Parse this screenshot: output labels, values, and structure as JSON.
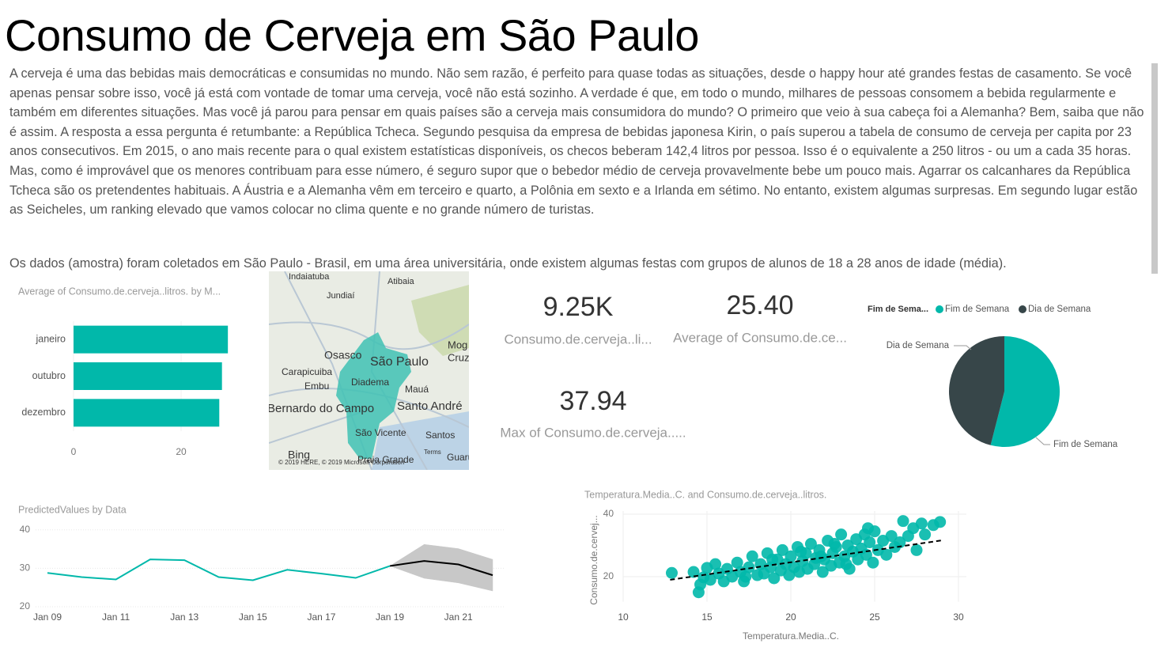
{
  "title": "Consumo de Cerveja em São Paulo",
  "paragraphs": [
    "A cerveja é uma das bebidas mais democráticas e consumidas no mundo. Não sem razão, é perfeito para quase todas as situações, desde o happy hour até grandes festas de casamento. Se você apenas pensar sobre isso, você já está com vontade de tomar uma cerveja, você não está sozinho. A verdade é que, em todo o mundo, milhares de pessoas consomem a bebida regularmente e também em diferentes situações. Mas você já parou para pensar em quais países são a cerveja mais consumidora do mundo? O primeiro que veio à sua cabeça foi a Alemanha? Bem, saiba que não é assim. A resposta a essa pergunta é retumbante: a República Tcheca. Segundo pesquisa da empresa de bebidas japonesa Kirin, o país superou a tabela de consumo de cerveja per capita por 23 anos consecutivos. Em 2015, o ano mais recente para o qual existem estatísticas disponíveis, os checos beberam 142,4 litros por pessoa. Isso é o equivalente a 250 litros - ou um a cada 35 horas. Mas, como é improvável que os menores contribuam para esse número, é seguro supor que o bebedor médio de cerveja provavelmente bebe um pouco mais. Agarrar os calcanhares da República Tcheca são os pretendentes habituais. A Áustria e a Alemanha vêm em terceiro e quarto, a Polônia em sexto e a Irlanda em sétimo. No entanto, existem algumas surpresas. Em segundo lugar estão as Seicheles, um ranking elevado que vamos colocar no clima quente e no grande número de turistas.",
    "Os dados (amostra) foram coletados em São Paulo - Brasil, em uma área universitária, onde existem algumas festas com grupos de alunos de 18 a 28 anos de idade (média)."
  ],
  "map": {
    "labels": [
      "Indaiatuba",
      "Atibaia",
      "Jundiaí",
      "Osasco",
      "São Paulo",
      "Mog",
      "Cruz",
      "Carapicuiba",
      "Embu",
      "Diadema",
      "Mauá",
      "Bernardo do Campo",
      "Santo André",
      "São Vicente",
      "Santos",
      "Praia Grande",
      "Guaru",
      "Bing",
      "© 2019 HERE, © 2019 Microsoft Corporation",
      "Terms"
    ]
  },
  "cards": [
    {
      "value": "9.25K",
      "label": "Consumo.de.cerveja..li..."
    },
    {
      "value": "25.40",
      "label": "Average of Consumo.de.ce..."
    },
    {
      "value": "37.94",
      "label": "Max of Consumo.de.cerveja....."
    }
  ],
  "chart_data": [
    {
      "type": "bar",
      "title": "Average of Consumo.de.cerveja..litros. by M...",
      "categories": [
        "janeiro",
        "outubro",
        "dezembro"
      ],
      "values": [
        28.7,
        27.6,
        27.1
      ],
      "color": "#01b8aa",
      "xlim": [
        0,
        30
      ],
      "xticks": [
        0,
        20
      ]
    },
    {
      "type": "pie",
      "legend_title": "Fim de Sema...",
      "categories": [
        "Fim de Semana",
        "Dia de Semana"
      ],
      "values": [
        54,
        46
      ],
      "colors": [
        "#01b8aa",
        "#374649"
      ]
    },
    {
      "type": "line",
      "title": "PredictedValues by Data",
      "categories": [
        "Jan 09",
        null,
        "Jan 11",
        null,
        "Jan 13",
        null,
        "Jan 15",
        null,
        "Jan 17",
        null,
        "Jan 19",
        null,
        "Jan 21",
        null
      ],
      "series": [
        {
          "color": "#01b8aa",
          "values": [
            28.8,
            27.7,
            27.1,
            32.3,
            32.1,
            27.7,
            26.9,
            29.6,
            28.6,
            27.5,
            30.6,
            null,
            null,
            null
          ]
        },
        {
          "color": "#000000",
          "values": [
            null,
            null,
            null,
            null,
            null,
            null,
            null,
            null,
            null,
            null,
            30.6,
            31.9,
            31.0,
            28.2
          ]
        }
      ],
      "band": {
        "color": "#c8c8c8",
        "upper": [
          null,
          null,
          null,
          null,
          null,
          null,
          null,
          null,
          null,
          null,
          30.6,
          36.2,
          35.1,
          32.3
        ],
        "lower": [
          null,
          null,
          null,
          null,
          null,
          null,
          null,
          null,
          null,
          null,
          30.6,
          27.4,
          26.2,
          24.1
        ]
      },
      "ylim": [
        20,
        42
      ],
      "yticks": [
        20,
        30,
        40
      ],
      "grid": true
    },
    {
      "type": "scatter",
      "title": "Temperatura.Media..C. and Consumo.de.cerveja..litros.",
      "x_label": "Temperatura.Media..C.",
      "y_label": "Consumo.de.cervej...",
      "color": "#01b8aa",
      "x": [
        12.9,
        14.2,
        14.5,
        14.6,
        14.8,
        15.0,
        15.2,
        15.5,
        15.7,
        16.0,
        16.2,
        16.5,
        16.8,
        17.0,
        17.2,
        17.5,
        17.7,
        18.0,
        18.2,
        18.4,
        18.6,
        18.8,
        19.0,
        19.2,
        19.4,
        19.5,
        19.7,
        19.9,
        20.0,
        20.2,
        20.4,
        20.5,
        20.7,
        20.9,
        21.0,
        21.2,
        21.4,
        21.5,
        21.7,
        21.9,
        22.0,
        22.2,
        22.4,
        22.5,
        22.7,
        22.9,
        23.0,
        23.2,
        23.4,
        23.5,
        23.7,
        23.9,
        24.0,
        24.2,
        24.4,
        24.5,
        24.7,
        24.9,
        25.0,
        25.2,
        25.5,
        25.7,
        26.0,
        26.2,
        26.5,
        26.7,
        27.0,
        27.3,
        27.5,
        27.8,
        28.0,
        28.5,
        28.9,
        17.3,
        18.9,
        20.6,
        21.8,
        22.6,
        23.3,
        24.6
      ],
      "y": [
        21.2,
        21.5,
        15.0,
        17.5,
        19.8,
        22.8,
        19.0,
        24.0,
        21.0,
        18.5,
        22.5,
        20.0,
        24.5,
        21.5,
        18.5,
        23.0,
        26.5,
        20.5,
        24.0,
        21.0,
        27.5,
        23.0,
        19.5,
        25.5,
        22.0,
        28.5,
        24.0,
        20.5,
        26.5,
        23.0,
        29.5,
        21.5,
        25.0,
        27.5,
        22.5,
        30.5,
        24.0,
        26.0,
        28.5,
        21.5,
        25.5,
        31.5,
        23.5,
        27.5,
        29.5,
        24.5,
        33.5,
        26.5,
        30.0,
        22.5,
        28.0,
        32.0,
        25.5,
        29.0,
        33.5,
        27.0,
        31.0,
        24.5,
        34.5,
        28.5,
        31.5,
        27.0,
        33.0,
        29.5,
        31.0,
        37.8,
        33.0,
        35.5,
        28.5,
        37.0,
        33.5,
        36.5,
        37.5,
        20.0,
        25.5,
        28.0,
        26.5,
        30.5,
        24.0,
        35.5
      ],
      "trend": {
        "x": [
          12.8,
          29.0
        ],
        "y": [
          19.0,
          31.6
        ],
        "color": "#000000"
      },
      "xlim": [
        10,
        30
      ],
      "ylim": [
        12,
        41
      ],
      "xticks": [
        10,
        15,
        20,
        25,
        30
      ],
      "yticks": [
        20,
        40
      ],
      "grid": true
    }
  ]
}
